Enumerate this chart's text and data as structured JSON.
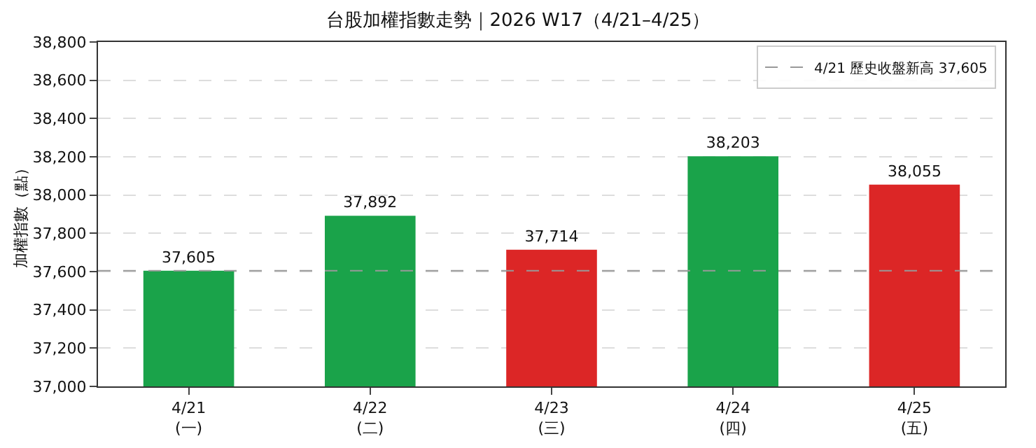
{
  "chart_data": {
    "type": "bar",
    "title": "台股加權指數走勢｜2026 W17（4/21–4/25）",
    "ylabel": "加權指數（點）",
    "categories": [
      "4/21\n(一)",
      "4/22\n(二)",
      "4/23\n(三)",
      "4/24\n(四)",
      "4/25\n(五)"
    ],
    "values": [
      37605,
      37892,
      37714,
      38203,
      38055
    ],
    "colors": [
      "#1aa34a",
      "#1aa34a",
      "#dc2626",
      "#1aa34a",
      "#dc2626"
    ],
    "value_labels": [
      "37,605",
      "37,892",
      "37,714",
      "38,203",
      "38,055"
    ],
    "ylim": [
      37000,
      38800
    ],
    "yticks": [
      {
        "value": 37000,
        "label": "37,000"
      },
      {
        "value": 37200,
        "label": "37,200"
      },
      {
        "value": 37400,
        "label": "37,400"
      },
      {
        "value": 37600,
        "label": "37,600"
      },
      {
        "value": 37800,
        "label": "37,800"
      },
      {
        "value": 38000,
        "label": "38,000"
      },
      {
        "value": 38200,
        "label": "38,200"
      },
      {
        "value": 38400,
        "label": "38,400"
      },
      {
        "value": 38600,
        "label": "38,600"
      },
      {
        "value": 38800,
        "label": "38,800"
      }
    ],
    "ref_lines": [
      {
        "axis": "y",
        "value": 37605,
        "label": "4/21 歷史收盤新高 37,605",
        "color": "#999999",
        "line_style": "dashed"
      }
    ],
    "grid": "y",
    "legend": "top right"
  }
}
